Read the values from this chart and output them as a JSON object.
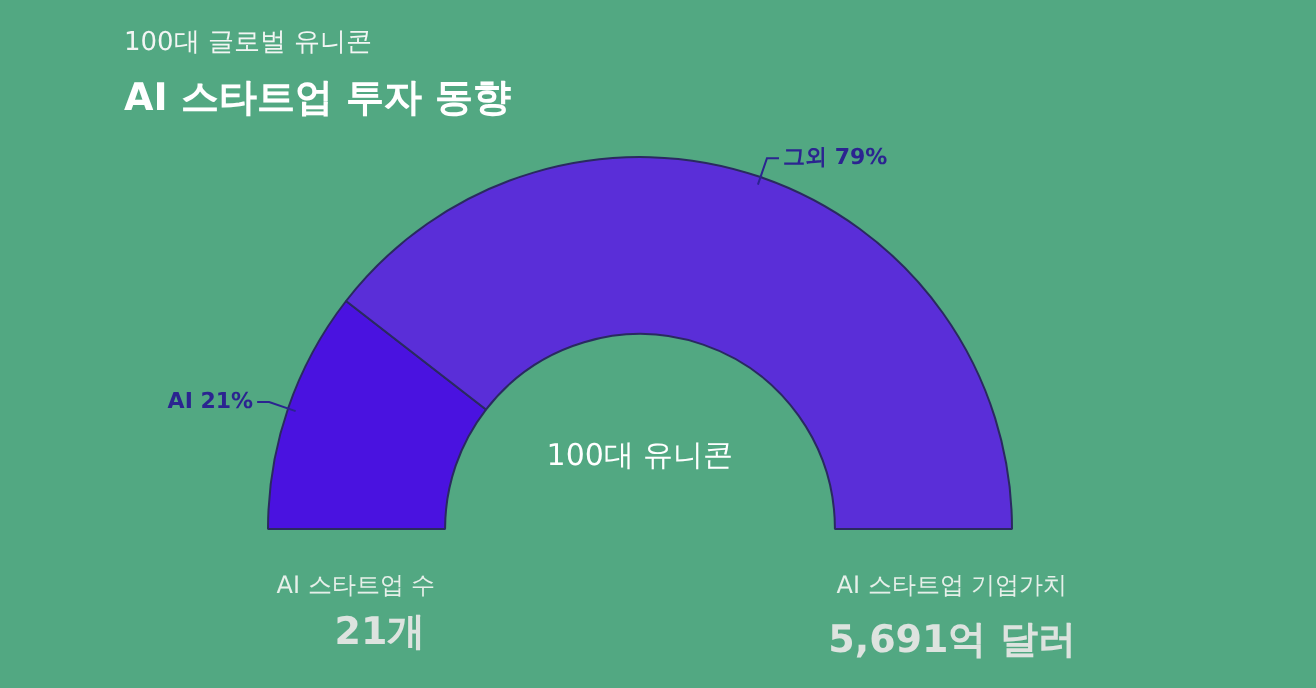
{
  "chart_data": {
    "type": "donut",
    "subtitle": "100대 글로벌 유니콘",
    "title": "AI 스타트업 투자 동향",
    "categories": [
      "AI",
      "그외"
    ],
    "values": [
      21,
      79
    ],
    "colors": [
      "#4a12e0",
      "#5a2ed8"
    ],
    "value_labels": [
      "21%",
      "79%"
    ],
    "annotations": [
      "100대 유니콘",
      "AI 스타트업 수",
      "21개",
      "AI 스타트업 기업가치",
      "5,691억 달러"
    ]
  }
}
